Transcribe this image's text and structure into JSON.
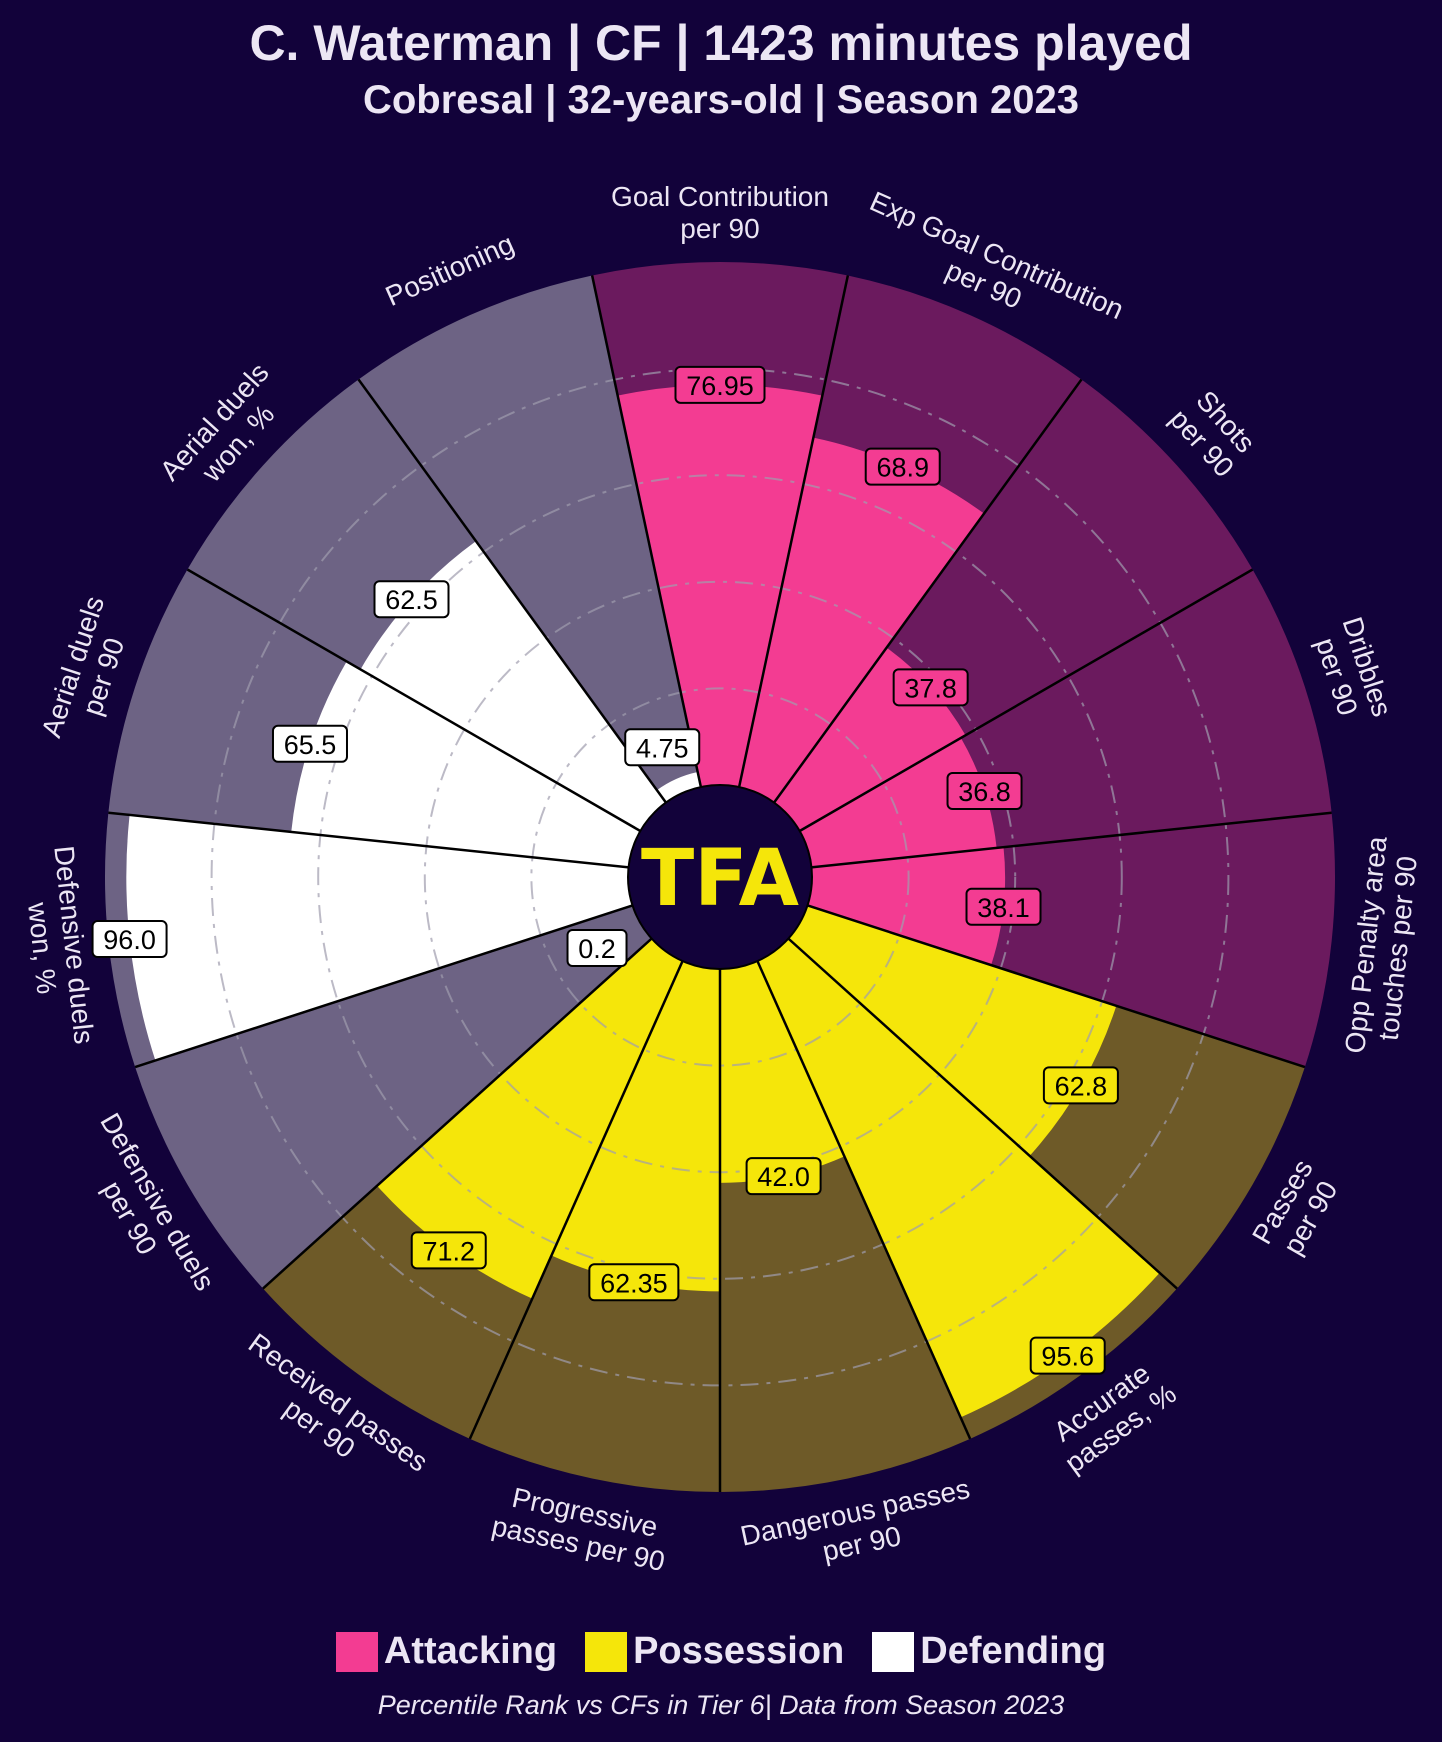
{
  "header": {
    "title": "C. Waterman | CF | 1423 minutes played",
    "subtitle": "Cobresal | 32-years-old | Season 2023"
  },
  "logo_text": "TFA",
  "legend": [
    {
      "label": "Attacking",
      "color": "#f33c92"
    },
    {
      "label": "Possession",
      "color": "#f5e60a"
    },
    {
      "label": "Defending",
      "color": "#ffffff"
    }
  ],
  "footnote": "Percentile Rank vs CFs in Tier 6| Data from Season 2023",
  "colors": {
    "background": "#12023a",
    "attacking_fill": "#f33c92",
    "attacking_bg": "#6b1a5e",
    "possession_fill": "#f5e60a",
    "possession_bg": "#6e5a28",
    "defending_fill": "#ffffff",
    "defending_bg": "#6d6384",
    "center": "#12023a",
    "logo": "#f5e60a"
  },
  "chart_data": {
    "type": "polar-bar",
    "scale": [
      0,
      100
    ],
    "grid": true,
    "legend_position": "bottom",
    "categories": [
      {
        "label": "Goal Contribution\nper 90",
        "value": 76.95,
        "display": "76.95",
        "group": "Attacking"
      },
      {
        "label": "Exp Goal Contribution\nper 90",
        "value": 68.9,
        "display": "68.9",
        "group": "Attacking"
      },
      {
        "label": "Shots\nper 90",
        "value": 37.8,
        "display": "37.8",
        "group": "Attacking"
      },
      {
        "label": "Dribbles\nper 90",
        "value": 36.8,
        "display": "36.8",
        "group": "Attacking"
      },
      {
        "label": "Opp Penalty area\ntouches per 90",
        "value": 38.1,
        "display": "38.1",
        "group": "Attacking"
      },
      {
        "label": "Passes\nper 90",
        "value": 62.8,
        "display": "62.8",
        "group": "Possession"
      },
      {
        "label": "Accurate\npasses, %",
        "value": 95.6,
        "display": "95.6",
        "group": "Possession"
      },
      {
        "label": "Dangerous passes\nper 90",
        "value": 42.0,
        "display": "42.0",
        "group": "Possession"
      },
      {
        "label": "Progressive\npasses per 90",
        "value": 62.35,
        "display": "62.35",
        "group": "Possession"
      },
      {
        "label": "Received passes\nper 90",
        "value": 71.2,
        "display": "71.2",
        "group": "Possession"
      },
      {
        "label": "Defensive duels\nper 90",
        "value": 0.2,
        "display": "0.2",
        "group": "Defending"
      },
      {
        "label": "Defensive duels\nwon, %",
        "value": 96.0,
        "display": "96.0",
        "group": "Defending"
      },
      {
        "label": "Aerial duels\nper 90",
        "value": 65.5,
        "display": "65.5",
        "group": "Defending"
      },
      {
        "label": "Aerial duels\nwon, %",
        "value": 62.5,
        "display": "62.5",
        "group": "Defending"
      },
      {
        "label": "Positioning",
        "value": 4.75,
        "display": "4.75",
        "group": "Defending"
      }
    ]
  }
}
